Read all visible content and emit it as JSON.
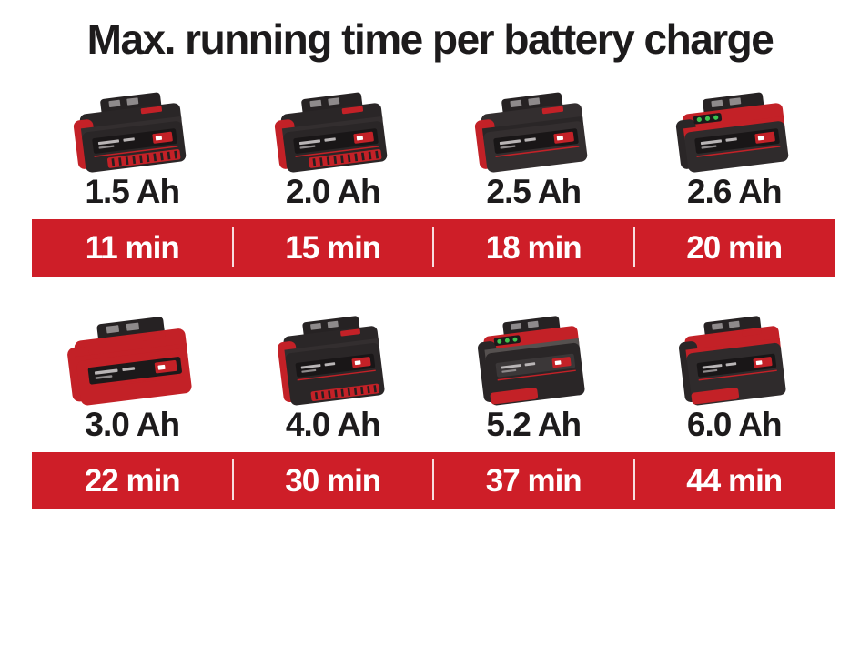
{
  "title": "Max. running time per battery charge",
  "colors": {
    "banner_red": "#ce1e28",
    "battery_red": "#c32127",
    "battery_dark": "#2a2627",
    "label_band_dark": "#191617",
    "led_green": "#3ec24e",
    "text_dark": "#1d1b1c",
    "divider_white": "#ffffff",
    "background": "#ffffff"
  },
  "rows": [
    {
      "batteries": [
        {
          "capacity": "1.5 Ah",
          "minutes": "11 min",
          "img": {
            "name": "battery-1-5ah",
            "top": "#2a2627",
            "side": "#c32127",
            "upper": "#332e2f",
            "front": "#2a2627",
            "band": "#191617",
            "accent": "#c32127",
            "leds": false,
            "ribbed": true,
            "tall": false,
            "redBottom": false
          }
        },
        {
          "capacity": "2.0 Ah",
          "minutes": "15 min",
          "img": {
            "name": "battery-2-0ah",
            "top": "#2a2627",
            "side": "#c32127",
            "upper": "#332e2f",
            "front": "#2a2627",
            "band": "#191617",
            "accent": "#c32127",
            "leds": false,
            "ribbed": true,
            "tall": false,
            "redBottom": false
          }
        },
        {
          "capacity": "2.5 Ah",
          "minutes": "18 min",
          "img": {
            "name": "battery-2-5ah",
            "top": "#332e2f",
            "side": "#c32127",
            "upper": "#2a2627",
            "front": "#332e2f",
            "band": "#191617",
            "accent": "#c32127",
            "leds": false,
            "ribbed": false,
            "tall": false,
            "redBottom": false
          }
        },
        {
          "capacity": "2.6 Ah",
          "minutes": "20 min",
          "img": {
            "name": "battery-2-6ah",
            "top": "#c32127",
            "side": "#2a2627",
            "upper": "#c32127",
            "front": "#2f2b2c",
            "band": "#191617",
            "accent": "#c32127",
            "leds": true,
            "ribbed": false,
            "tall": false,
            "redBottom": false
          }
        }
      ]
    },
    {
      "batteries": [
        {
          "capacity": "3.0 Ah",
          "minutes": "22 min",
          "img": {
            "name": "battery-3-0ah",
            "top": "#c32127",
            "side": "#c32127",
            "upper": "#c32127",
            "front": "#c32127",
            "band": "#1c191a",
            "accent": "#c32127",
            "leds": false,
            "ribbed": false,
            "tall": false,
            "redBottom": false
          }
        },
        {
          "capacity": "4.0 Ah",
          "minutes": "30 min",
          "img": {
            "name": "battery-4-0ah",
            "top": "#2a2627",
            "side": "#c32127",
            "upper": "#332e2f",
            "front": "#2a2627",
            "band": "#191617",
            "accent": "#c32127",
            "leds": false,
            "ribbed": true,
            "tall": true,
            "redBottom": false
          }
        },
        {
          "capacity": "5.2 Ah",
          "minutes": "37 min",
          "img": {
            "name": "battery-5-2ah",
            "top": "#c32127",
            "side": "#2a2627",
            "upper": "#55504f",
            "front": "#2a2627",
            "band": "#3b3738",
            "accent": "#c32127",
            "leds": true,
            "ribbed": false,
            "tall": true,
            "redBottom": true
          }
        },
        {
          "capacity": "6.0 Ah",
          "minutes": "44 min",
          "img": {
            "name": "battery-6-0ah",
            "top": "#c32127",
            "side": "#2a2627",
            "upper": "#c32127",
            "front": "#2f2b2c",
            "band": "#191617",
            "accent": "#c32127",
            "leds": false,
            "ribbed": false,
            "tall": true,
            "redBottom": true
          }
        }
      ]
    }
  ],
  "chart_data": {
    "type": "table",
    "title": "Max. running time per battery charge",
    "categories": [
      "1.5 Ah",
      "2.0 Ah",
      "2.5 Ah",
      "2.6 Ah",
      "3.0 Ah",
      "4.0 Ah",
      "5.2 Ah",
      "6.0 Ah"
    ],
    "series": [
      {
        "name": "Max. running time per battery charge",
        "values": [
          11,
          15,
          18,
          20,
          22,
          30,
          37,
          44
        ]
      }
    ],
    "unit": "min",
    "layout": "2 rows of 4 battery images with capacity labels, each row followed by a red banner of running times separated by white dividers"
  }
}
